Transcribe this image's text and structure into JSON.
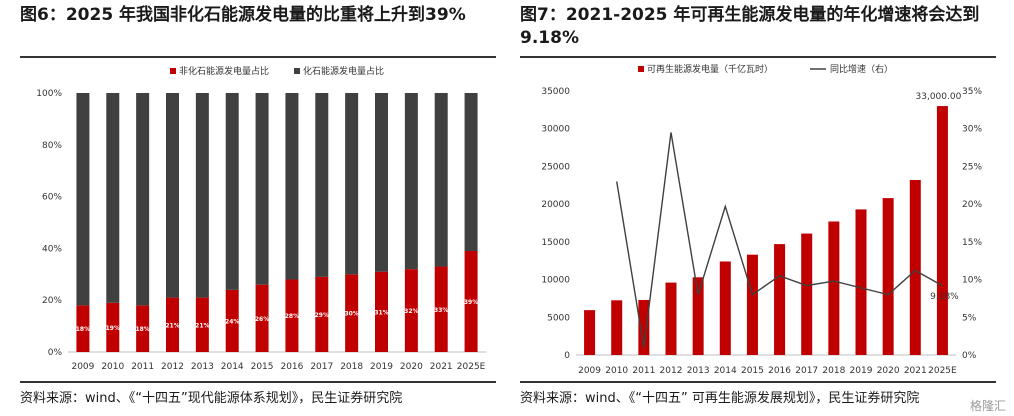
{
  "left": {
    "title": "图6：2025 年我国非化石能源发电量的比重将上升到39%",
    "source": "资料来源：wind、《“十四五”现代能源体系规划》，民生证券研究院",
    "chart_data": {
      "type": "bar",
      "stacked": true,
      "categories": [
        "2009",
        "2010",
        "2011",
        "2012",
        "2013",
        "2014",
        "2015",
        "2016",
        "2017",
        "2018",
        "2019",
        "2020",
        "2021",
        "2025E"
      ],
      "series": [
        {
          "name": "非化石能源发电量占比",
          "color": "#c00000",
          "values": [
            18,
            19,
            18,
            21,
            21,
            24,
            26,
            28,
            29,
            30,
            31,
            32,
            33,
            39
          ],
          "labels": [
            "18%",
            "19%",
            "18%",
            "21%",
            "21%",
            "24%",
            "26%",
            "28%",
            "29%",
            "30%",
            "31%",
            "32%",
            "33%",
            "39%"
          ]
        },
        {
          "name": "化石能源发电量占比",
          "color": "#404040",
          "values": [
            82,
            81,
            82,
            79,
            79,
            76,
            74,
            72,
            71,
            70,
            69,
            68,
            67,
            61
          ]
        }
      ],
      "yticks": [
        "0%",
        "20%",
        "40%",
        "60%",
        "80%",
        "100%"
      ],
      "ylim": [
        0,
        100
      ],
      "legend": "top"
    }
  },
  "right": {
    "title": "图7：2021-2025 年可再生能源发电量的年化增速将会达到 9.18%",
    "source": "资料来源：wind、《“十四五”  可再生能源发展规划》，民生证券研究院",
    "chart_data": {
      "type": "bar",
      "categories": [
        "2009",
        "2010",
        "2011",
        "2012",
        "2013",
        "2014",
        "2015",
        "2016",
        "2017",
        "2018",
        "2019",
        "2020",
        "2021",
        "2025E"
      ],
      "series": [
        {
          "name": "可再生能源发电量（千亿瓦时）",
          "type": "bar",
          "axis": "left",
          "color": "#c00000",
          "values": [
            5950,
            7250,
            7300,
            9600,
            10300,
            12400,
            13300,
            14700,
            16100,
            17700,
            19300,
            20800,
            23200,
            33000
          ]
        },
        {
          "name": "同比增速（右）",
          "type": "line",
          "axis": "right",
          "color": "#404040",
          "x": [
            "2010",
            "2011",
            "2012",
            "2013",
            "2014",
            "2015",
            "2016",
            "2017",
            "2018",
            "2019",
            "2020",
            "2021",
            "2025E"
          ],
          "values": [
            23,
            1,
            29.5,
            8,
            19.7,
            8,
            10.5,
            9.2,
            9.8,
            8.9,
            8,
            11.2,
            9.18
          ]
        }
      ],
      "yticks_left": [
        "0",
        "5000",
        "10000",
        "15000",
        "20000",
        "25000",
        "30000",
        "35000"
      ],
      "ylim_left": [
        0,
        35000
      ],
      "yticks_right": [
        "0%",
        "5%",
        "10%",
        "15%",
        "20%",
        "25%",
        "30%",
        "35%"
      ],
      "ylim_right": [
        0,
        35
      ],
      "annotations": [
        "33,000.00",
        "9.18%"
      ],
      "legend": "top"
    }
  },
  "watermark": "格隆汇"
}
